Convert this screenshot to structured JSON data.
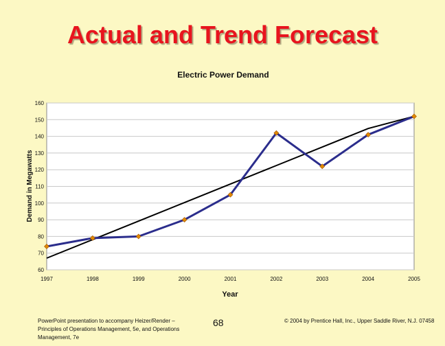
{
  "slide": {
    "title": "Actual and Trend Forecast",
    "footer_left": "PowerPoint presentation to accompany Heizer/Render – Principles of Operations Management, 5e, and Operations Management, 7e",
    "page_number": "68",
    "footer_right": "© 2004 by Prentice Hall, Inc., Upper Saddle River, N.J. 07458"
  },
  "chart_data": {
    "type": "line",
    "title": "Electric Power Demand",
    "xlabel": "Year",
    "ylabel": "Demand in Megawatts",
    "categories": [
      "1997",
      "1998",
      "1999",
      "2000",
      "2001",
      "2002",
      "2003",
      "2004",
      "2005"
    ],
    "y_ticks": [
      "60",
      "70",
      "80",
      "90",
      "100",
      "110",
      "120",
      "130",
      "140",
      "150",
      "160"
    ],
    "ylim": [
      60,
      160
    ],
    "grid": true,
    "series": [
      {
        "values": [
          74,
          79,
          80,
          90,
          105,
          142,
          122,
          141,
          152
        ],
        "color": "#2b2d8c",
        "marker_color": "#e08a00"
      },
      {
        "values": [
          67,
          78.1,
          89.2,
          100.3,
          111.4,
          122.5,
          133.6,
          144.7,
          152
        ],
        "color": "#000000"
      }
    ]
  }
}
